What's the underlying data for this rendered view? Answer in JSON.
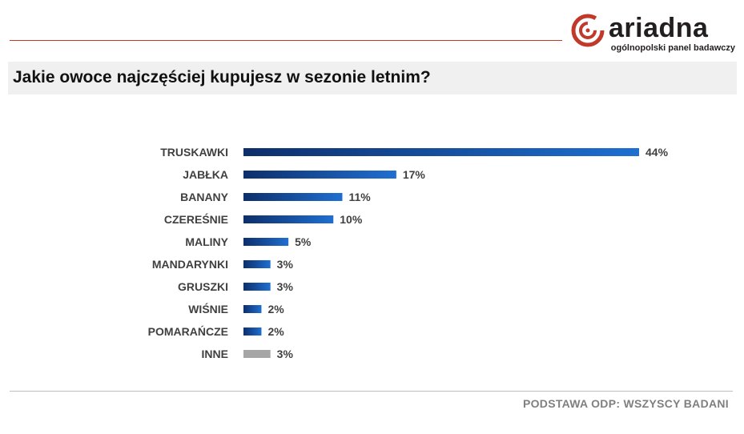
{
  "header": {
    "logo_word": "ariadna",
    "logo_tagline": "ogólnopolski panel badawczy",
    "logo_icon": "ariadna-spiral-logo-icon"
  },
  "title": "Jakie owoce najczęściej kupujesz w sezonie letnim?",
  "footer": "PODSTAWA ODP: WSZYSCY BADANI",
  "colors": {
    "bar_dark": "#0d2f6b",
    "bar_light": "#1f6fd1",
    "bar_other": "#a6a6a6",
    "accent_red": "#c0392b"
  },
  "chart_data": {
    "type": "bar",
    "orientation": "horizontal",
    "categories": [
      "TRUSKAWKI",
      "JABŁKA",
      "BANANY",
      "CZEREŚNIE",
      "MALINY",
      "MANDARYNKI",
      "GRUSZKI",
      "WIŚNIE",
      "POMARAŃCZE",
      "INNE"
    ],
    "values": [
      44,
      17,
      11,
      10,
      5,
      3,
      3,
      2,
      2,
      3
    ],
    "value_labels": [
      "44%",
      "17%",
      "11%",
      "10%",
      "5%",
      "3%",
      "3%",
      "2%",
      "2%",
      "3%"
    ],
    "unit": "%",
    "xlim": [
      0,
      44
    ],
    "grid": false,
    "legend": false
  }
}
